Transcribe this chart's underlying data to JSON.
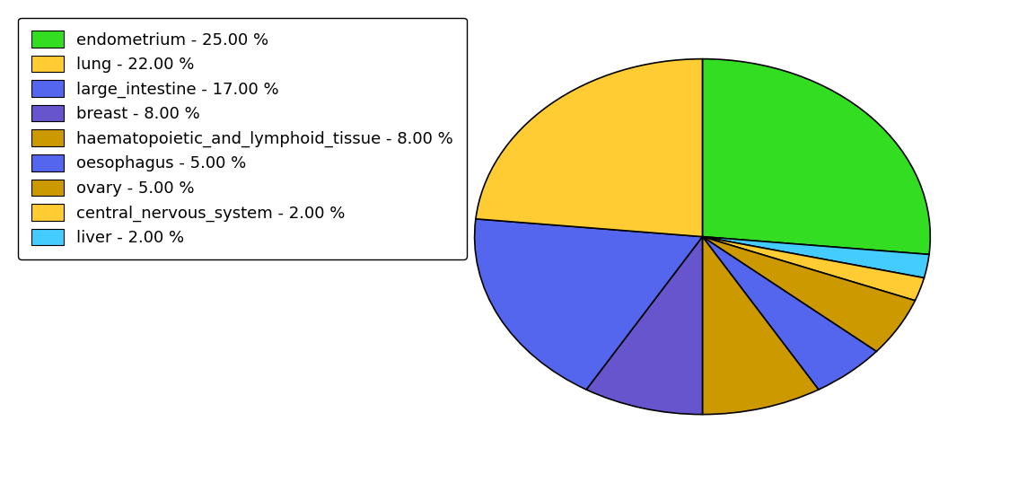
{
  "labels": [
    "endometrium",
    "lung",
    "large_intestine",
    "breast",
    "haematopoietic_and_lymphoid_tissue",
    "oesophagus",
    "ovary",
    "central_nervous_system",
    "liver"
  ],
  "values": [
    25,
    22,
    17,
    8,
    8,
    5,
    5,
    2,
    2
  ],
  "colors": [
    "#33dd22",
    "#ffcc33",
    "#5566ee",
    "#6655cc",
    "#cc9900",
    "#5566ee",
    "#cc9900",
    "#ffcc33",
    "#44ccff"
  ],
  "legend_labels": [
    "endometrium - 25.00 %",
    "lung - 22.00 %",
    "large_intestine - 17.00 %",
    "breast - 8.00 %",
    "haematopoietic_and_lymphoid_tissue - 8.00 %",
    "oesophagus - 5.00 %",
    "ovary - 5.00 %",
    "central_nervous_system - 2.00 %",
    "liver - 2.00 %"
  ],
  "pie_order": [
    0,
    8,
    7,
    6,
    5,
    4,
    3,
    2,
    1
  ],
  "startangle": 90,
  "legend_fontsize": 13,
  "figsize": [
    11.34,
    5.38
  ],
  "dpi": 100,
  "aspect": 0.78
}
